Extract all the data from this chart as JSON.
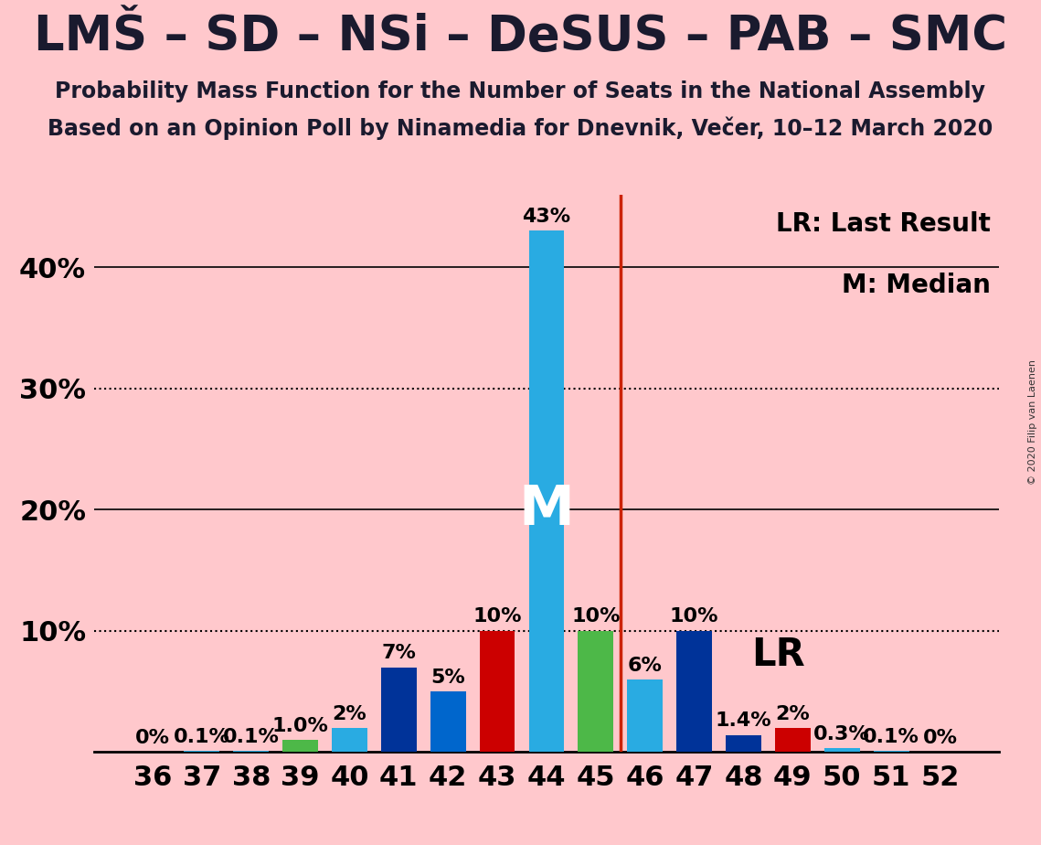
{
  "title": "LMŠ – SD – NSi – DeSUS – PAB – SMC",
  "subtitle1": "Probability Mass Function for the Number of Seats in the National Assembly",
  "subtitle2": "Based on an Opinion Poll by Ninamedia for Dnevnik, Večer, 10–12 March 2020",
  "copyright": "© 2020 Filip van Laenen",
  "categories": [
    36,
    37,
    38,
    39,
    40,
    41,
    42,
    43,
    44,
    45,
    46,
    47,
    48,
    49,
    50,
    51,
    52
  ],
  "values": [
    0.0,
    0.1,
    0.1,
    1.0,
    2.0,
    7.0,
    5.0,
    10.0,
    43.0,
    10.0,
    6.0,
    10.0,
    1.4,
    2.0,
    0.3,
    0.1,
    0.0
  ],
  "bar_colors": [
    "#29ABE2",
    "#29ABE2",
    "#29ABE2",
    "#4DB848",
    "#29ABE2",
    "#003399",
    "#0066CC",
    "#CC0000",
    "#29ABE2",
    "#4DB848",
    "#29ABE2",
    "#003399",
    "#003399",
    "#CC0000",
    "#29ABE2",
    "#29ABE2",
    "#29ABE2"
  ],
  "labels": [
    "0%",
    "0.1%",
    "0.1%",
    "1.0%",
    "2%",
    "7%",
    "5%",
    "10%",
    "43%",
    "10%",
    "6%",
    "10%",
    "1.4%",
    "2%",
    "0.3%",
    "0.1%",
    "0%"
  ],
  "median_bar_idx": 8,
  "lr_bar_idx": 7,
  "median_label": "M",
  "lr_label": "LR",
  "legend_lr": "LR: Last Result",
  "legend_m": "M: Median",
  "ylim_max": 46,
  "background_color": "#FFC8CC",
  "title_fontsize": 38,
  "subtitle_fontsize": 17,
  "tick_fontsize": 22,
  "bar_label_fontsize": 16,
  "legend_fontsize": 20
}
